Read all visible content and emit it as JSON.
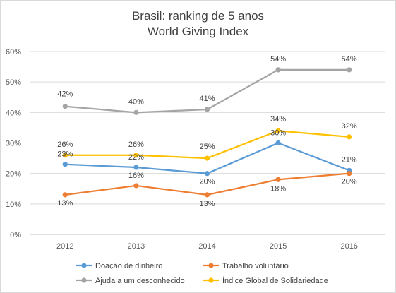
{
  "chart_data": {
    "type": "line",
    "title": "Brasil: ranking de 5 anos",
    "subtitle": "World Giving Index",
    "categories": [
      "2012",
      "2013",
      "2014",
      "2015",
      "2016"
    ],
    "ylim": [
      0,
      60
    ],
    "yticks": [
      "0%",
      "10%",
      "20%",
      "30%",
      "40%",
      "50%",
      "60%"
    ],
    "grid": true,
    "legend_position": "bottom",
    "series": [
      {
        "name": "Doação de dinheiro",
        "color": "#5b9bd5",
        "values": [
          23,
          22,
          20,
          30,
          21
        ],
        "labels": [
          "23%",
          "22%",
          "20%",
          "30%",
          "21%"
        ]
      },
      {
        "name": "Trabalho voluntário",
        "color": "#ed7d31",
        "values": [
          13,
          16,
          13,
          18,
          20
        ],
        "labels": [
          "13%",
          "16%",
          "13%",
          "18%",
          "20%"
        ]
      },
      {
        "name": "Ajuda a um desconhecido",
        "color": "#a5a5a5",
        "values": [
          42,
          40,
          41,
          54,
          54
        ],
        "labels": [
          "42%",
          "40%",
          "41%",
          "54%",
          "54%"
        ]
      },
      {
        "name": "Índice Global de Solidariedade",
        "color": "#ffc000",
        "values": [
          26,
          26,
          25,
          34,
          32
        ],
        "labels": [
          "26%",
          "26%",
          "25%",
          "34%",
          "32%"
        ]
      }
    ]
  }
}
